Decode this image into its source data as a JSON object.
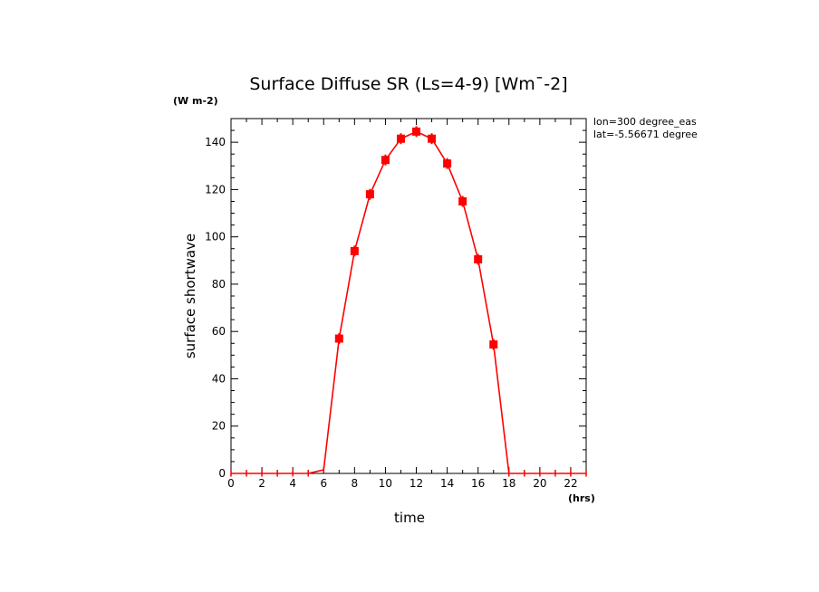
{
  "chart_data": {
    "type": "line",
    "title": "Surface Diffuse SR (Ls=4-9) [Wm¯-2]",
    "units_label": "(W m-2)",
    "xlabel": "time",
    "x_units": "(hrs)",
    "ylabel": "surface shortwave",
    "xlim": [
      0,
      23
    ],
    "ylim": [
      0,
      150
    ],
    "x_major_ticks": [
      0,
      2,
      4,
      6,
      8,
      10,
      12,
      14,
      16,
      18,
      20,
      22
    ],
    "x_tick_labels": [
      "0",
      "2",
      "4",
      "6",
      "8",
      "10",
      "12",
      "14",
      "16",
      "18",
      "20",
      "22"
    ],
    "y_major_ticks": [
      0,
      20,
      40,
      60,
      80,
      100,
      120,
      140
    ],
    "y_tick_labels": [
      "0",
      "20",
      "40",
      "60",
      "80",
      "100",
      "120",
      "140"
    ],
    "annotations": [
      "lon=300 degree_eas",
      "lat=-5.56671 degree"
    ],
    "series": [
      {
        "name": "surface shortwave",
        "color": "#ff0000",
        "x": [
          0,
          1,
          2,
          3,
          4,
          5,
          6,
          7,
          8,
          9,
          10,
          11,
          12,
          13,
          14,
          15,
          16,
          17,
          18,
          19,
          20,
          21,
          22,
          23
        ],
        "values": [
          0,
          0,
          0,
          0,
          0,
          0,
          1.5,
          57,
          94,
          118,
          132.5,
          141.5,
          144.5,
          141.5,
          131,
          115,
          90.5,
          54.5,
          0,
          0,
          0,
          0,
          0,
          0
        ]
      }
    ]
  }
}
